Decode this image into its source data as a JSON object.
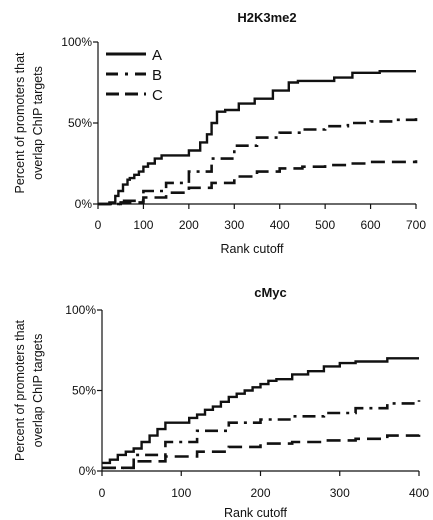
{
  "chart_data": [
    {
      "type": "line",
      "title": "H2K3me2",
      "xlabel": "Rank cutoff",
      "ylabel": [
        "Percent of promoters that",
        "overlap ChIP targets"
      ],
      "xlim": [
        0,
        700
      ],
      "ylim": [
        0,
        100
      ],
      "xticks": [
        "0",
        "100",
        "200",
        "300",
        "400",
        "500",
        "600",
        "700"
      ],
      "yticks": [
        "0%",
        "50%",
        "100%"
      ],
      "legend": "top-left",
      "series": [
        {
          "name": "A",
          "style": "solid",
          "x": [
            0,
            25,
            38,
            45,
            55,
            65,
            70,
            80,
            90,
            100,
            110,
            125,
            140,
            175,
            200,
            225,
            240,
            250,
            262,
            280,
            310,
            345,
            385,
            420,
            440,
            480,
            520,
            560,
            620,
            700
          ],
          "values": [
            0,
            1,
            5,
            8,
            12,
            15,
            16,
            18,
            20,
            23,
            25,
            28,
            30,
            30,
            33,
            38,
            43,
            50,
            57,
            58,
            62,
            65,
            70,
            75,
            76,
            76,
            78,
            81,
            82,
            82
          ]
        },
        {
          "name": "B",
          "style": "dash-dot",
          "x": [
            0,
            50,
            100,
            150,
            200,
            250,
            300,
            350,
            400,
            450,
            500,
            550,
            600,
            650,
            700
          ],
          "values": [
            0,
            2,
            8,
            13,
            20,
            28,
            36,
            41,
            44,
            46,
            48,
            50,
            51,
            52,
            53
          ]
        },
        {
          "name": "C",
          "style": "dashed",
          "x": [
            0,
            50,
            100,
            150,
            200,
            250,
            300,
            350,
            400,
            450,
            500,
            550,
            600,
            650,
            700
          ],
          "values": [
            0,
            1,
            4,
            7,
            10,
            13,
            17,
            20,
            22,
            23,
            24,
            25,
            26,
            26,
            27
          ]
        }
      ]
    },
    {
      "type": "line",
      "title": "cMyc",
      "xlabel": "Rank cutoff",
      "ylabel": [
        "Percent of promoters that",
        "overlap ChIP targets"
      ],
      "xlim": [
        0,
        400
      ],
      "ylim": [
        0,
        100
      ],
      "xticks": [
        "0",
        "100",
        "200",
        "300",
        "400"
      ],
      "yticks": [
        "0%",
        "50%",
        "100%"
      ],
      "series": [
        {
          "name": "A",
          "style": "solid",
          "x": [
            0,
            10,
            20,
            30,
            40,
            50,
            60,
            70,
            80,
            100,
            110,
            120,
            130,
            140,
            150,
            160,
            170,
            180,
            190,
            200,
            210,
            220,
            240,
            260,
            280,
            300,
            320,
            360,
            400
          ],
          "values": [
            5,
            7,
            10,
            12,
            14,
            18,
            22,
            26,
            30,
            30,
            33,
            35,
            38,
            40,
            43,
            46,
            48,
            50,
            52,
            54,
            56,
            57,
            60,
            62,
            65,
            67,
            68,
            70,
            70
          ]
        },
        {
          "name": "B",
          "style": "dash-dot",
          "x": [
            0,
            40,
            80,
            120,
            160,
            200,
            240,
            280,
            320,
            360,
            400
          ],
          "values": [
            2,
            10,
            18,
            25,
            30,
            32,
            34,
            36,
            39,
            42,
            44
          ]
        },
        {
          "name": "C",
          "style": "dashed",
          "x": [
            0,
            40,
            80,
            120,
            160,
            200,
            240,
            280,
            320,
            360,
            400
          ],
          "values": [
            2,
            6,
            9,
            12,
            15,
            17,
            18,
            19,
            20,
            22,
            23
          ]
        }
      ]
    }
  ]
}
